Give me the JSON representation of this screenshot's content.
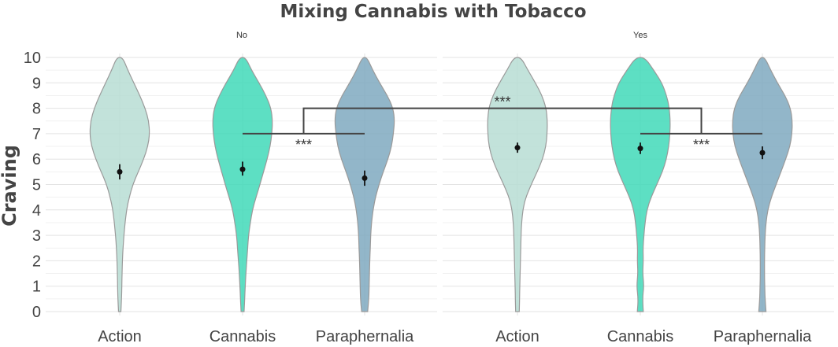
{
  "chart_data": {
    "type": "violin",
    "title": "Mixing Cannabis with Tobacco",
    "ylabel": "Craving",
    "xlabel": "",
    "ylim": [
      0,
      10
    ],
    "yticks": [
      "0",
      "1",
      "2",
      "3",
      "4",
      "5",
      "6",
      "7",
      "8",
      "9",
      "10"
    ],
    "grid": true,
    "colors": {
      "Action": "#b7ddd3",
      "Cannabis": "#41d9b8",
      "Paraphernalia": "#7fa9bf",
      "outline": "#9a9a9a",
      "point": "#111111",
      "bracket": "#444444"
    },
    "facets": [
      {
        "label": "No",
        "groups": [
          {
            "name": "Action",
            "mean": 5.5,
            "ci": [
              5.2,
              5.8
            ],
            "density": [
              [
                0,
                0.04
              ],
              [
                0.5,
                0.06
              ],
              [
                1,
                0.07
              ],
              [
                1.5,
                0.08
              ],
              [
                2,
                0.09
              ],
              [
                2.5,
                0.11
              ],
              [
                3,
                0.14
              ],
              [
                3.5,
                0.18
              ],
              [
                4,
                0.23
              ],
              [
                4.5,
                0.32
              ],
              [
                5,
                0.44
              ],
              [
                5.5,
                0.62
              ],
              [
                6,
                0.8
              ],
              [
                6.5,
                0.94
              ],
              [
                7,
                1.0
              ],
              [
                7.5,
                0.97
              ],
              [
                8,
                0.85
              ],
              [
                8.5,
                0.67
              ],
              [
                9,
                0.47
              ],
              [
                9.5,
                0.27
              ],
              [
                10,
                0.1
              ]
            ]
          },
          {
            "name": "Cannabis",
            "mean": 5.6,
            "ci": [
              5.35,
              5.9
            ],
            "density": [
              [
                0,
                0.05
              ],
              [
                0.5,
                0.07
              ],
              [
                1,
                0.09
              ],
              [
                1.5,
                0.11
              ],
              [
                2,
                0.14
              ],
              [
                2.5,
                0.17
              ],
              [
                3,
                0.2
              ],
              [
                3.5,
                0.26
              ],
              [
                4,
                0.33
              ],
              [
                4.5,
                0.45
              ],
              [
                5,
                0.58
              ],
              [
                5.5,
                0.7
              ],
              [
                6,
                0.82
              ],
              [
                6.5,
                0.92
              ],
              [
                7,
                0.98
              ],
              [
                7.5,
                1.0
              ],
              [
                8,
                0.95
              ],
              [
                8.5,
                0.78
              ],
              [
                9,
                0.55
              ],
              [
                9.5,
                0.3
              ],
              [
                10,
                0.1
              ]
            ]
          },
          {
            "name": "Paraphernalia",
            "mean": 5.25,
            "ci": [
              4.95,
              5.55
            ],
            "density": [
              [
                0,
                0.1
              ],
              [
                0.5,
                0.14
              ],
              [
                1,
                0.15
              ],
              [
                1.5,
                0.16
              ],
              [
                2,
                0.17
              ],
              [
                2.5,
                0.19
              ],
              [
                3,
                0.2
              ],
              [
                3.5,
                0.23
              ],
              [
                4,
                0.28
              ],
              [
                4.5,
                0.36
              ],
              [
                5,
                0.48
              ],
              [
                5.5,
                0.62
              ],
              [
                6,
                0.78
              ],
              [
                6.5,
                0.9
              ],
              [
                7,
                0.96
              ],
              [
                7.5,
                1.0
              ],
              [
                8,
                0.95
              ],
              [
                8.5,
                0.76
              ],
              [
                9,
                0.5
              ],
              [
                9.5,
                0.27
              ],
              [
                10,
                0.08
              ]
            ]
          }
        ]
      },
      {
        "label": "Yes",
        "groups": [
          {
            "name": "Action",
            "mean": 6.45,
            "ci": [
              6.25,
              6.65
            ],
            "density": [
              [
                0,
                0.06
              ],
              [
                0.5,
                0.07
              ],
              [
                1,
                0.08
              ],
              [
                1.5,
                0.09
              ],
              [
                2,
                0.1
              ],
              [
                2.5,
                0.11
              ],
              [
                3,
                0.12
              ],
              [
                3.5,
                0.14
              ],
              [
                4,
                0.18
              ],
              [
                4.5,
                0.28
              ],
              [
                5,
                0.46
              ],
              [
                5.5,
                0.66
              ],
              [
                6,
                0.84
              ],
              [
                6.5,
                0.95
              ],
              [
                7,
                0.99
              ],
              [
                7.5,
                1.0
              ],
              [
                8,
                0.96
              ],
              [
                8.5,
                0.82
              ],
              [
                9,
                0.6
              ],
              [
                9.5,
                0.35
              ],
              [
                10,
                0.12
              ]
            ]
          },
          {
            "name": "Cannabis",
            "mean": 6.42,
            "ci": [
              6.2,
              6.65
            ],
            "density": [
              [
                0,
                0.1
              ],
              [
                0.5,
                0.07
              ],
              [
                1,
                0.12
              ],
              [
                1.5,
                0.08
              ],
              [
                2,
                0.1
              ],
              [
                2.5,
                0.09
              ],
              [
                3,
                0.12
              ],
              [
                3.5,
                0.16
              ],
              [
                4,
                0.22
              ],
              [
                4.5,
                0.36
              ],
              [
                5,
                0.55
              ],
              [
                5.5,
                0.74
              ],
              [
                6,
                0.87
              ],
              [
                6.5,
                0.95
              ],
              [
                7,
                0.99
              ],
              [
                7.5,
                1.0
              ],
              [
                8,
                0.97
              ],
              [
                8.5,
                0.88
              ],
              [
                9,
                0.72
              ],
              [
                9.5,
                0.45
              ],
              [
                10,
                0.15
              ]
            ]
          },
          {
            "name": "Paraphernalia",
            "mean": 6.25,
            "ci": [
              6.0,
              6.5
            ],
            "density": [
              [
                0,
                0.12
              ],
              [
                0.5,
                0.09
              ],
              [
                1,
                0.08
              ],
              [
                1.5,
                0.07
              ],
              [
                2,
                0.07
              ],
              [
                2.5,
                0.08
              ],
              [
                3,
                0.09
              ],
              [
                3.5,
                0.12
              ],
              [
                4,
                0.18
              ],
              [
                4.5,
                0.3
              ],
              [
                5,
                0.46
              ],
              [
                5.5,
                0.62
              ],
              [
                6,
                0.78
              ],
              [
                6.5,
                0.92
              ],
              [
                7,
                0.99
              ],
              [
                7.5,
                1.0
              ],
              [
                8,
                0.94
              ],
              [
                8.5,
                0.76
              ],
              [
                9,
                0.5
              ],
              [
                9.5,
                0.28
              ],
              [
                10,
                0.08
              ]
            ]
          }
        ]
      }
    ],
    "annotations": [
      {
        "type": "bracket",
        "label": "***",
        "from": [
          "No",
          "Cannabis"
        ],
        "to": [
          "No",
          "Paraphernalia"
        ],
        "y": 7
      },
      {
        "type": "bracket",
        "label": "***",
        "from": [
          "Yes",
          "Cannabis"
        ],
        "to": [
          "Yes",
          "Paraphernalia"
        ],
        "y": 7
      },
      {
        "type": "bracket",
        "label": "***",
        "from": "No",
        "to": "Yes",
        "y": 8
      }
    ]
  }
}
